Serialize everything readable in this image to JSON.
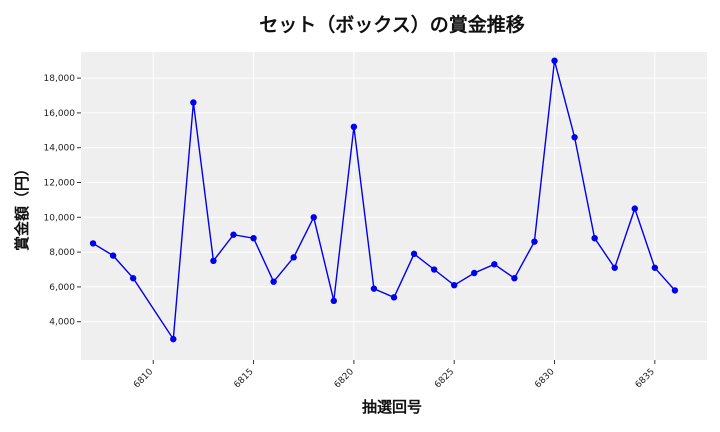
{
  "chart_data": {
    "type": "line",
    "title": "セット（ボックス）の賞金推移",
    "xlabel": "抽選回号",
    "ylabel": "賞金額（円）",
    "xlim": [
      6806.4,
      6837.6
    ],
    "ylim": [
      1800,
      19500
    ],
    "xticks": [
      6810,
      6815,
      6820,
      6825,
      6830,
      6835
    ],
    "yticks": [
      4000,
      6000,
      8000,
      10000,
      12000,
      14000,
      16000,
      18000
    ],
    "ytick_labels": [
      "4,000",
      "6,000",
      "8,000",
      "10,000",
      "12,000",
      "14,000",
      "16,000",
      "18,000"
    ],
    "grid": true,
    "colors": {
      "line": "#0000ee",
      "marker": "#0000ee",
      "plot_bg": "#efefef",
      "grid": "#ffffff"
    },
    "series": [
      {
        "x": [
          6807,
          6808,
          6809,
          6811,
          6812,
          6813,
          6814,
          6815,
          6816,
          6817,
          6818,
          6819,
          6820,
          6821,
          6822,
          6823,
          6824,
          6825,
          6826,
          6827,
          6828,
          6829,
          6830,
          6831,
          6832,
          6833,
          6834,
          6835,
          6836
        ],
        "values": [
          8500,
          7800,
          6500,
          3000,
          16600,
          7500,
          9000,
          8800,
          6300,
          7700,
          10000,
          5200,
          15200,
          5900,
          5400,
          7900,
          7000,
          6100,
          6800,
          7300,
          6500,
          8600,
          19000,
          14600,
          8800,
          7100,
          10500,
          7100,
          5800
        ]
      }
    ]
  }
}
